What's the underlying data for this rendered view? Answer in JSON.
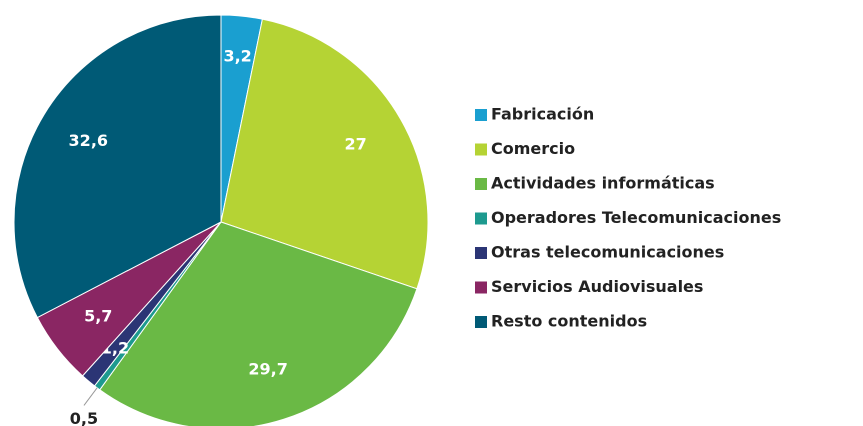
{
  "chart_data": {
    "type": "pie",
    "categories": [
      "Fabricación",
      "Comercio",
      "Actividades informáticas",
      "Operadores Telecomunicaciones",
      "Otras telecomunicaciones",
      "Servicios Audiovisuales",
      "Resto contenidos"
    ],
    "values": [
      3.2,
      27,
      29.7,
      0.5,
      1.2,
      5.7,
      32.6
    ],
    "value_labels": [
      "3,2",
      "27",
      "29,7",
      "0,5",
      "1,2",
      "5,7",
      "32,6"
    ],
    "colors": [
      "#1a9fd0",
      "#b5d334",
      "#6ab945",
      "#1d9a8f",
      "#2b3575",
      "#8a2663",
      "#005a76"
    ],
    "legend": "right"
  }
}
